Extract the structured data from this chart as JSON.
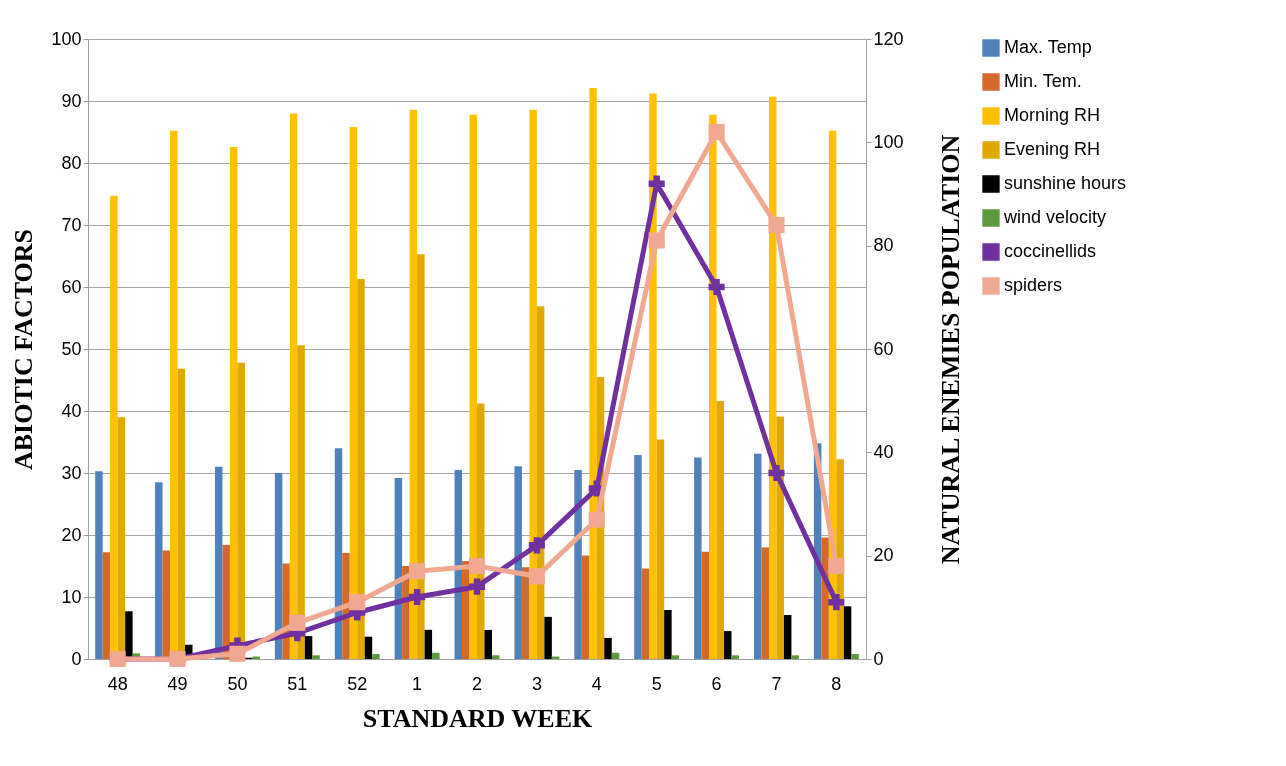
{
  "chart_data": {
    "type": "bar",
    "xlabel": "STANDARD WEEK",
    "ylabel": "ABIOTIC FACTORS",
    "y2label": "NATURAL ENEMIES POPULATION",
    "categories": [
      "48",
      "49",
      "50",
      "51",
      "52",
      "1",
      "2",
      "3",
      "4",
      "5",
      "6",
      "7",
      "8"
    ],
    "ylim": [
      0,
      100
    ],
    "yticks": [
      0,
      10,
      20,
      30,
      40,
      50,
      60,
      70,
      80,
      90,
      100
    ],
    "y2lim": [
      0,
      120
    ],
    "y2ticks": [
      0,
      20,
      40,
      60,
      80,
      100,
      120
    ],
    "grid": "y",
    "legend": "right",
    "series": [
      {
        "name": "Max. Temp",
        "color": "#4f81bd",
        "values": [
          30.3,
          28.5,
          31,
          30,
          34,
          29.2,
          30.5,
          31.1,
          30.5,
          32.9,
          32.5,
          33.1,
          34.8
        ]
      },
      {
        "name": "Min. Tem.",
        "color": "#d46a2a",
        "values": [
          17.2,
          17.5,
          18.4,
          15.4,
          17.1,
          15,
          15.8,
          14.8,
          16.7,
          14.6,
          17.3,
          18,
          19.6
        ]
      },
      {
        "name": "Morning RH",
        "color": "#ffc000",
        "values": [
          74.7,
          85.2,
          82.6,
          88,
          85.8,
          88.6,
          87.8,
          88.6,
          92.1,
          91.2,
          87.8,
          90.7,
          85.2
        ]
      },
      {
        "name": "Evening RH",
        "color": "#e0a800",
        "values": [
          39,
          46.8,
          47.8,
          50.6,
          61.3,
          65.3,
          41.2,
          56.9,
          45.5,
          35.4,
          41.6,
          39.1,
          32.2
        ]
      },
      {
        "name": "sunshine hours",
        "color": "#000000",
        "values": [
          7.7,
          2.3,
          0.2,
          3.7,
          3.6,
          4.7,
          4.7,
          6.8,
          3.4,
          7.9,
          4.5,
          7.1,
          8.5
        ]
      },
      {
        "name": "wind velocity",
        "color": "#5b9a3a",
        "values": [
          0.9,
          null,
          0.4,
          0.6,
          0.8,
          1.0,
          0.6,
          0.4,
          1.0,
          0.6,
          0.6,
          0.6,
          0.8
        ]
      },
      {
        "name": "coccinellids",
        "color": "#7030a0",
        "type": "line",
        "axis": "y2",
        "marker": "cross",
        "values": [
          0,
          0,
          2.6,
          5,
          9,
          12,
          14,
          22,
          33,
          92,
          72,
          36,
          11
        ]
      },
      {
        "name": "spiders",
        "color": "#f0a890",
        "type": "line",
        "axis": "y2",
        "marker": "square",
        "values": [
          0,
          0,
          1,
          7,
          11,
          17,
          18,
          16,
          27,
          81,
          102,
          84,
          18
        ]
      }
    ]
  }
}
